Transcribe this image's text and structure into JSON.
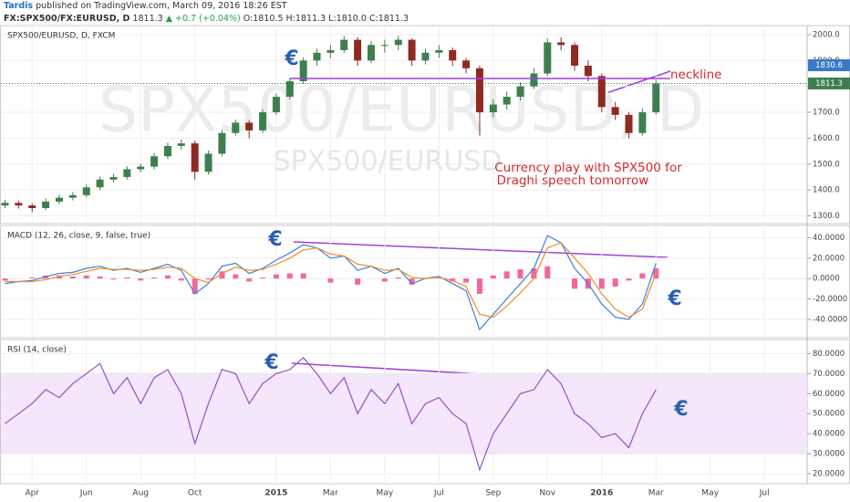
{
  "header": {
    "author": "Tardis",
    "published": "published on TradingView.com, March 09, 2016 18:26 EST",
    "symbol": "FX:SPX500/FX:EURUSD, D",
    "last": "1811.3",
    "change": "▲ +0.7 (+0.04%)",
    "open": "O:1810.5",
    "high": "H:1811.3",
    "low": "L:1810.0",
    "close": "C:1811.3"
  },
  "chart_data": [
    {
      "type": "candlestick",
      "label": "SPX500/EURUSD, D, FXCM",
      "watermark": "SPX500/EURUSD, D",
      "watermark2": "SPX500/EURUSD",
      "up_color": "#3f7f4f",
      "down_color": "#8e2a22",
      "open": [
        1340,
        1350,
        1340,
        1330,
        1355,
        1370,
        1380,
        1410,
        1440,
        1450,
        1480,
        1490,
        1530,
        1570,
        1580,
        1470,
        1540,
        1620,
        1660,
        1630,
        1700,
        1760,
        1820,
        1900,
        1930,
        1940,
        1980,
        1900,
        1960,
        1960,
        1980,
        1900,
        1930,
        1940,
        1900,
        1870,
        1700,
        1730,
        1760,
        1800,
        1850,
        1970,
        1960,
        1880,
        1840,
        1720,
        1690,
        1620,
        1700,
        null,
        null,
        null,
        null,
        null,
        null,
        null,
        null,
        null,
        null,
        null
      ],
      "high": [
        1362,
        1358,
        1348,
        1367,
        1382,
        1392,
        1422,
        1452,
        1462,
        1492,
        1502,
        1542,
        1582,
        1595,
        1590,
        1552,
        1632,
        1672,
        1670,
        1712,
        1772,
        1832,
        1912,
        1945,
        1960,
        1995,
        1990,
        1975,
        1980,
        1995,
        1985,
        1945,
        1960,
        1950,
        1910,
        1880,
        1750,
        1780,
        1815,
        1870,
        1985,
        1990,
        1970,
        1900,
        1850,
        1740,
        1700,
        1715,
        1825,
        null,
        null,
        null,
        null,
        null,
        null,
        null,
        null,
        null,
        null,
        null
      ],
      "low": [
        1330,
        1328,
        1315,
        1322,
        1345,
        1360,
        1372,
        1400,
        1430,
        1440,
        1468,
        1480,
        1520,
        1555,
        1440,
        1460,
        1530,
        1610,
        1600,
        1620,
        1690,
        1750,
        1810,
        1880,
        1910,
        1930,
        1880,
        1890,
        1930,
        1940,
        1880,
        1885,
        1910,
        1880,
        1850,
        1610,
        1680,
        1710,
        1745,
        1790,
        1840,
        1940,
        1860,
        1820,
        1700,
        1670,
        1600,
        1610,
        1690,
        null,
        null,
        null,
        null,
        null,
        null,
        null,
        null,
        null,
        null,
        null
      ],
      "close": [
        1350,
        1340,
        1330,
        1355,
        1370,
        1380,
        1410,
        1440,
        1450,
        1480,
        1490,
        1530,
        1570,
        1580,
        1470,
        1540,
        1620,
        1660,
        1630,
        1700,
        1760,
        1820,
        1900,
        1930,
        1940,
        1980,
        1900,
        1960,
        1960,
        1980,
        1900,
        1930,
        1940,
        1900,
        1870,
        1700,
        1730,
        1760,
        1800,
        1850,
        1970,
        1960,
        1880,
        1840,
        1720,
        1690,
        1620,
        1700,
        1811.3,
        null,
        null,
        null,
        null,
        null,
        null,
        null,
        null,
        null,
        null,
        null
      ],
      "ylim": [
        1270,
        2035
      ],
      "yticks": [
        {
          "value": 1300,
          "label": "1300.0"
        },
        {
          "value": 1400,
          "label": "1400.0"
        },
        {
          "value": 1500,
          "label": "1500.0"
        },
        {
          "value": 1600,
          "label": "1600.0"
        },
        {
          "value": 1700,
          "label": "1700.0"
        },
        {
          "value": 1800,
          "label": "1800.0"
        },
        {
          "value": 1900,
          "label": "1900.0"
        },
        {
          "value": 2000,
          "label": "2000.0"
        }
      ],
      "last_price": 1811.3,
      "neckline": 1830.6,
      "annotations": [
        "€",
        "neckline",
        "Currency play with SPX500 for",
        "Draghi speech tomorrow"
      ]
    },
    {
      "type": "macd",
      "label": "MACD (12, 26, close, 9, false, true)",
      "series": [
        {
          "color": "#3d7fe0",
          "values": [
            -5,
            -3,
            -2,
            2,
            5,
            6,
            10,
            12,
            8,
            10,
            6,
            10,
            14,
            8,
            -15,
            -5,
            12,
            15,
            5,
            10,
            18,
            25,
            33,
            30,
            20,
            22,
            8,
            12,
            5,
            10,
            -5,
            0,
            2,
            -5,
            -12,
            -50,
            -35,
            -20,
            -5,
            10,
            42,
            35,
            10,
            -5,
            -25,
            -38,
            -40,
            -25,
            15,
            null,
            null,
            null,
            null,
            null,
            null,
            null,
            null,
            null,
            null,
            null
          ]
        },
        {
          "color": "#f28c28",
          "values": [
            -3,
            -3,
            -3,
            -1,
            2,
            4,
            7,
            10,
            9,
            9,
            8,
            9,
            11,
            10,
            0,
            -4,
            5,
            11,
            8,
            9,
            14,
            20,
            28,
            30,
            24,
            22,
            14,
            12,
            8,
            9,
            1,
            0,
            1,
            -2,
            -8,
            -35,
            -38,
            -27,
            -14,
            0,
            30,
            35,
            20,
            5,
            -15,
            -30,
            -38,
            -30,
            5,
            null,
            null,
            null,
            null,
            null,
            null,
            null,
            null,
            null,
            null,
            null
          ]
        }
      ],
      "histogram": {
        "color": "#f5659d",
        "values": [
          -2,
          0,
          1,
          3,
          3,
          2,
          3,
          2,
          -1,
          1,
          -2,
          1,
          3,
          -2,
          -15,
          -1,
          7,
          4,
          -3,
          1,
          4,
          5,
          5,
          0,
          -4,
          0,
          -6,
          0,
          -3,
          1,
          -6,
          0,
          1,
          -3,
          -4,
          -15,
          3,
          7,
          9,
          10,
          12,
          0,
          -10,
          -10,
          -10,
          -8,
          -2,
          5,
          10,
          null,
          null,
          null,
          null,
          null,
          null,
          null,
          null,
          null,
          null,
          null
        ]
      },
      "ylim": [
        -58,
        52
      ],
      "yticks": [
        {
          "value": -40,
          "label": "-40.0000"
        },
        {
          "value": -20,
          "label": "-20.0000"
        },
        {
          "value": 0,
          "label": "0.0000"
        },
        {
          "value": 20,
          "label": "20.0000"
        },
        {
          "value": 40,
          "label": "40.0000"
        }
      ],
      "annotations": [
        "€",
        "€"
      ]
    },
    {
      "type": "line",
      "label": "RSI (14, close)",
      "color": "#9550c0",
      "band": [
        30,
        70
      ],
      "band_color": "#f4e6fb",
      "values": [
        45,
        50,
        55,
        62,
        58,
        65,
        70,
        75,
        60,
        68,
        55,
        68,
        72,
        60,
        35,
        55,
        72,
        70,
        55,
        65,
        70,
        72,
        78,
        70,
        60,
        68,
        50,
        62,
        55,
        65,
        45,
        55,
        58,
        50,
        45,
        22,
        40,
        50,
        60,
        62,
        72,
        65,
        50,
        45,
        38,
        40,
        33,
        50,
        62,
        null,
        null,
        null,
        null,
        null,
        null,
        null,
        null,
        null,
        null,
        null
      ],
      "categories": [
        null,
        null,
        "Apr",
        null,
        null,
        null,
        "Jun",
        null,
        null,
        null,
        "Aug",
        null,
        null,
        null,
        "Oct",
        null,
        null,
        null,
        null,
        null,
        "2015",
        null,
        null,
        null,
        "Mar",
        null,
        null,
        null,
        "May",
        null,
        null,
        null,
        "Jul",
        null,
        null,
        null,
        "Sep",
        null,
        null,
        null,
        "Nov",
        null,
        null,
        null,
        "2016",
        null,
        null,
        null,
        "Mar",
        null,
        null,
        null,
        "May",
        null,
        null,
        null,
        "Jul",
        null,
        null,
        null
      ],
      "ylim": [
        15,
        87
      ],
      "yticks": [
        {
          "value": 20,
          "label": "20.0000"
        },
        {
          "value": 30,
          "label": "30.0000"
        },
        {
          "value": 40,
          "label": "40.0000"
        },
        {
          "value": 50,
          "label": "50.0000"
        },
        {
          "value": 60,
          "label": "60.0000"
        },
        {
          "value": 70,
          "label": "70.0000"
        },
        {
          "value": 80,
          "label": "80.0000"
        }
      ],
      "annotations": [
        "€",
        "€"
      ]
    }
  ]
}
